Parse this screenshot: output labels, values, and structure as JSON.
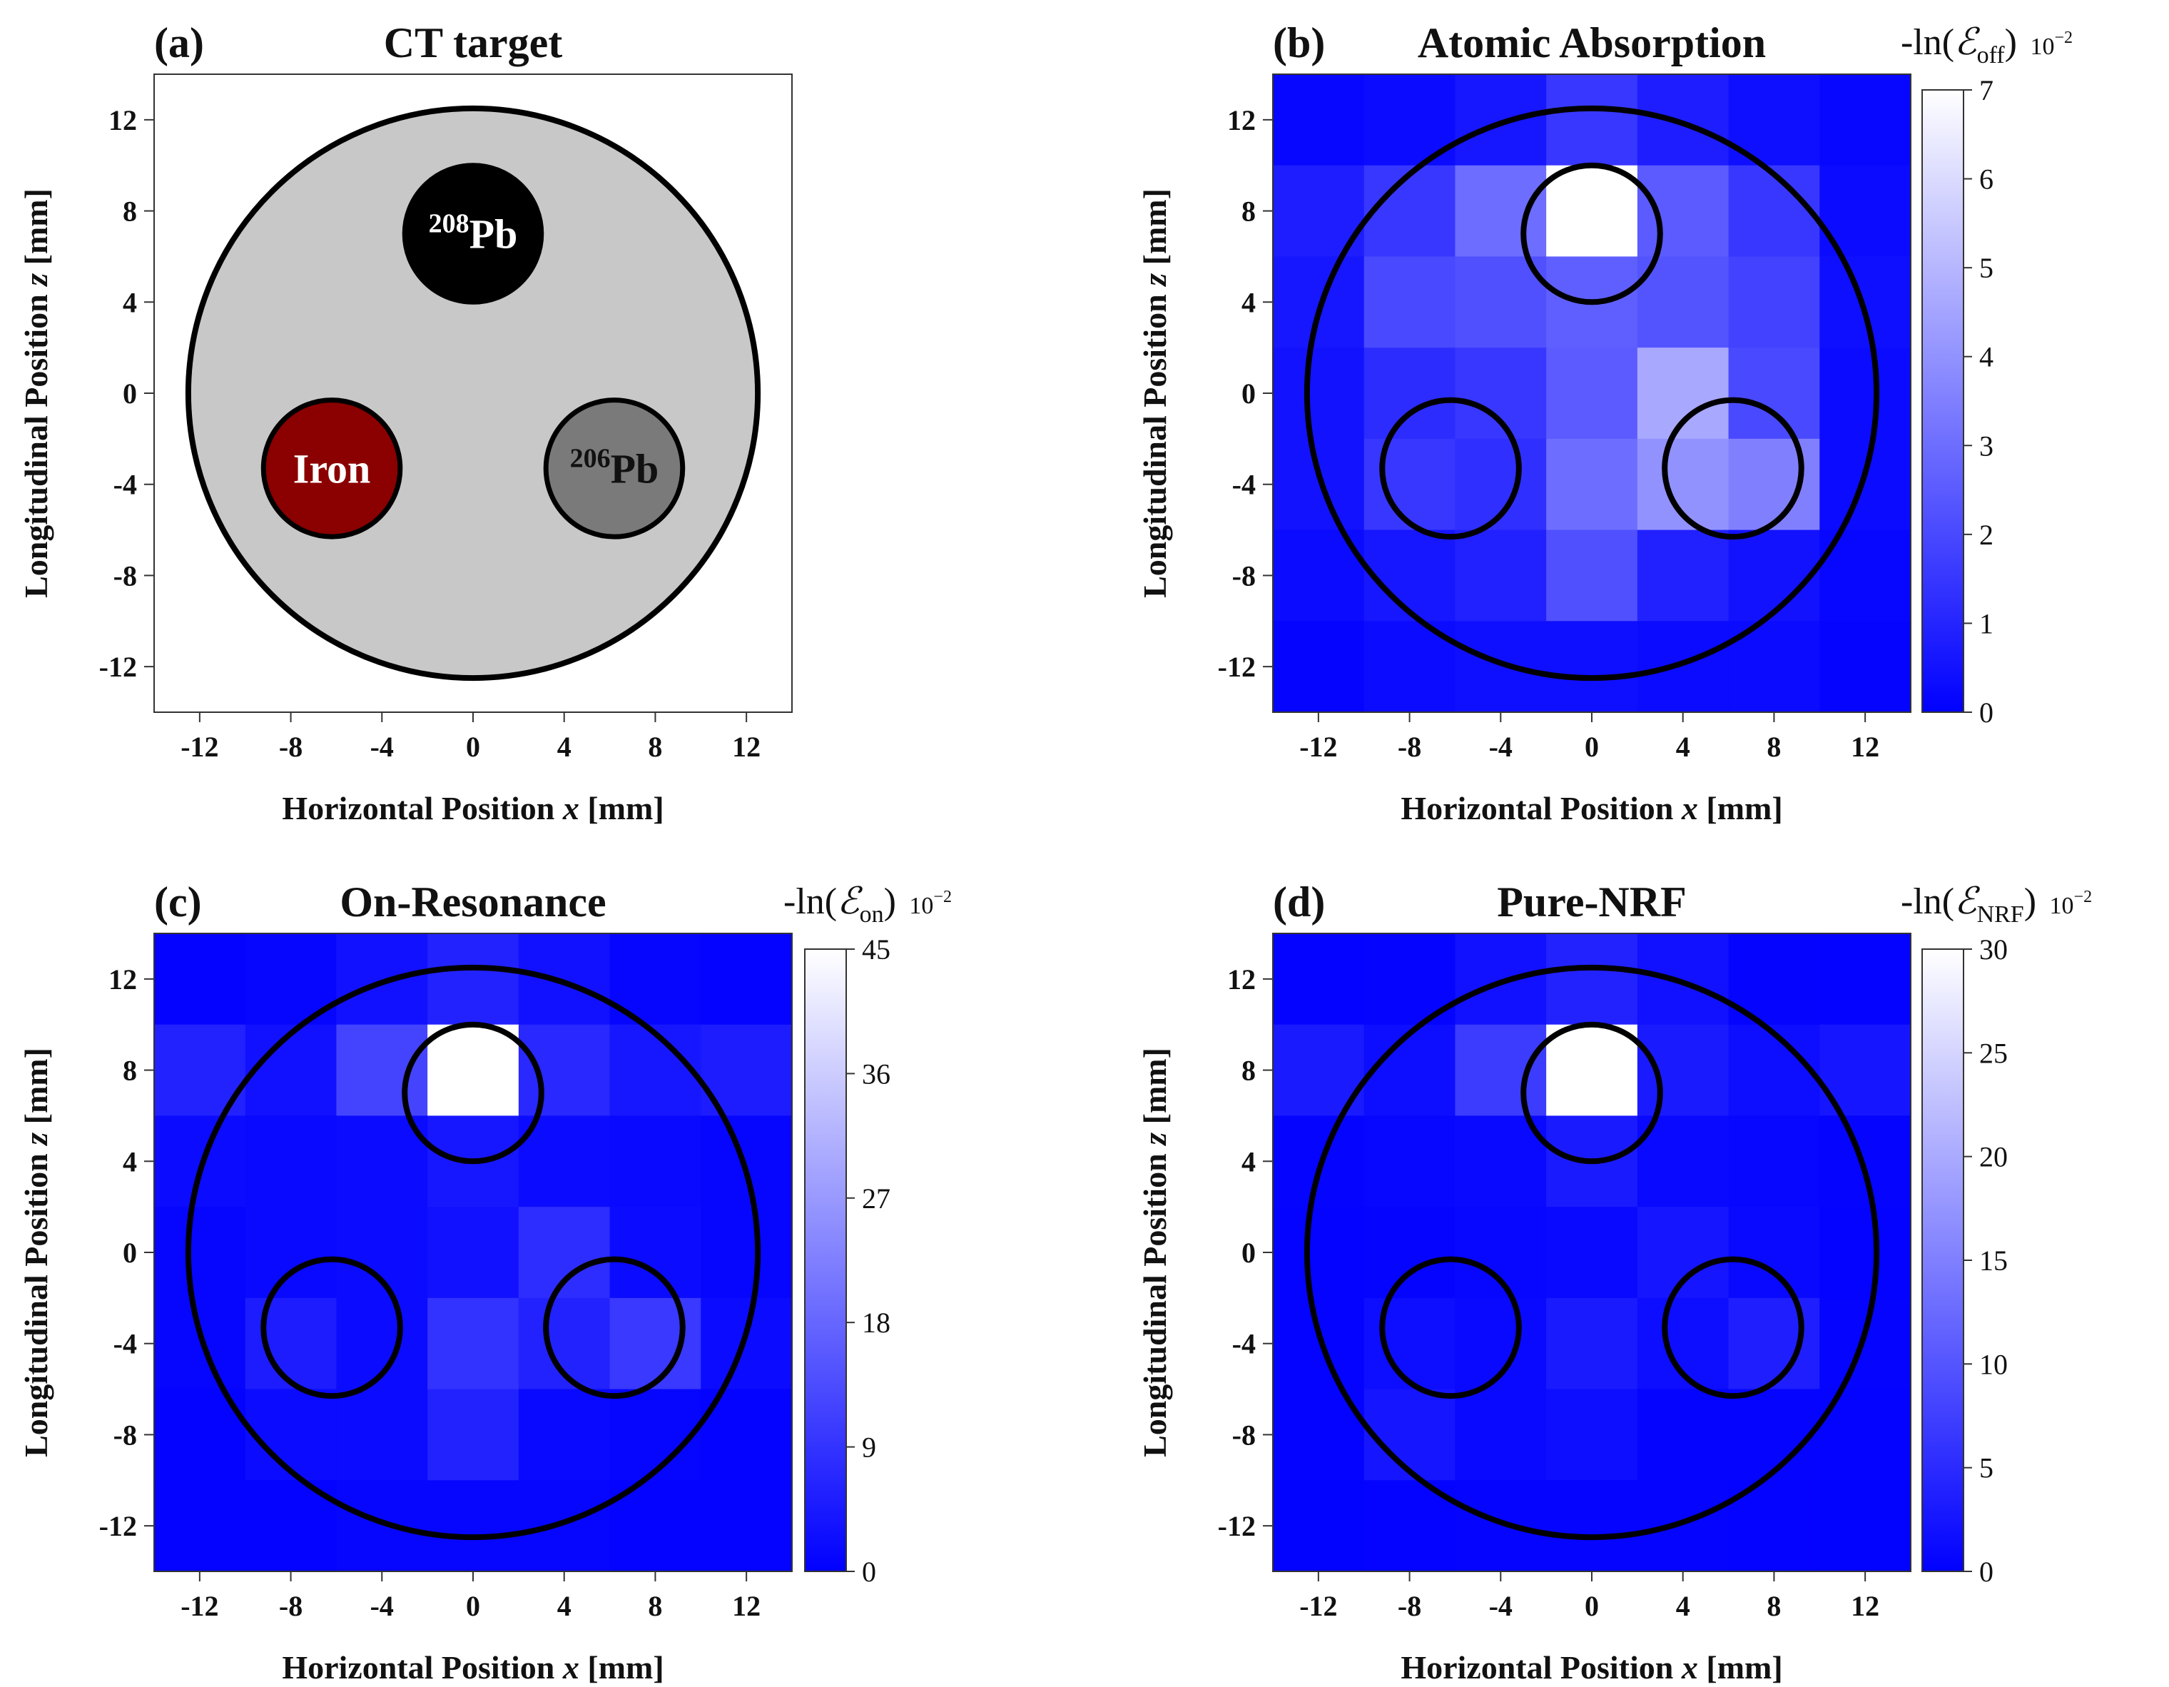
{
  "figure": {
    "colors": {
      "low": "#0000ff",
      "high": "#ffffff",
      "phantom": "#c8c8c8",
      "iron": "#8b0000",
      "pb208": "#000000",
      "pb206": "#7a7a7a",
      "outline": "#000000"
    }
  },
  "chart_data": [
    {
      "id": "a",
      "type": "diagram",
      "panel_label": "(a)",
      "title": "CT target",
      "xlabel_prefix": "Horizontal Position ",
      "xlabel_var": "x",
      "xlabel_suffix": " [mm]",
      "ylabel_prefix": "Longitudinal Position ",
      "ylabel_var": "z",
      "ylabel_suffix": " [mm]",
      "xlim": [
        -14,
        14
      ],
      "ylim": [
        -14,
        14
      ],
      "xticks": [
        -12,
        -8,
        -4,
        0,
        4,
        8,
        12
      ],
      "yticks": [
        -12,
        -8,
        -4,
        0,
        4,
        8,
        12
      ],
      "phantom": {
        "cx": 0,
        "cz": 0,
        "r": 12.5
      },
      "rods": [
        {
          "name": "pb208",
          "cx": 0,
          "cz": 7,
          "r": 3,
          "color": "pb208",
          "text_color": "#ffffff",
          "sup": "208",
          "label": "Pb"
        },
        {
          "name": "iron",
          "cx": -6.2,
          "cz": -3.3,
          "r": 3,
          "color": "iron",
          "text_color": "#ffffff",
          "sup": "",
          "label": "Iron"
        },
        {
          "name": "pb206",
          "cx": 6.2,
          "cz": -3.3,
          "r": 3,
          "color": "pb206",
          "text_color": "#111111",
          "sup": "206",
          "label": "Pb"
        }
      ]
    },
    {
      "id": "b",
      "type": "heatmap",
      "panel_label": "(b)",
      "title": "Atomic Absorption",
      "xlabel_prefix": "Horizontal Position ",
      "xlabel_var": "x",
      "xlabel_suffix": " [mm]",
      "ylabel_prefix": "Longitudinal Position ",
      "ylabel_var": "z",
      "ylabel_suffix": " [mm]",
      "xlim": [
        -14,
        14
      ],
      "ylim": [
        -14,
        14
      ],
      "xticks": [
        -12,
        -8,
        -4,
        0,
        4,
        8,
        12
      ],
      "yticks": [
        -12,
        -8,
        -4,
        0,
        4,
        8,
        12
      ],
      "cell_x_edges": [
        -14,
        -10,
        -6,
        -2,
        2,
        6,
        10,
        14
      ],
      "cell_z_edges": [
        14,
        10,
        6,
        2,
        -2,
        -6,
        -10,
        -14
      ],
      "values": [
        [
          0.2,
          0.3,
          0.6,
          1.5,
          0.8,
          0.4,
          0.2
        ],
        [
          0.8,
          1.5,
          3.0,
          7.0,
          2.5,
          1.5,
          0.3
        ],
        [
          0.6,
          2.0,
          2.2,
          2.6,
          2.3,
          1.8,
          0.4
        ],
        [
          0.5,
          1.2,
          1.5,
          2.5,
          4.6,
          2.0,
          0.3
        ],
        [
          0.5,
          1.5,
          1.3,
          3.0,
          4.0,
          3.5,
          0.3
        ],
        [
          0.3,
          0.6,
          0.9,
          2.2,
          0.9,
          0.5,
          0.2
        ],
        [
          0.1,
          0.3,
          0.4,
          0.4,
          0.3,
          0.3,
          0.1
        ]
      ],
      "vmin": 0,
      "vmax": 7,
      "colorbar_ticks": [
        0,
        1,
        2,
        3,
        4,
        5,
        6,
        7
      ],
      "colorbar_title_prefix": "-ln(",
      "colorbar_title_symbol": "ℰ",
      "colorbar_title_sub": "off",
      "colorbar_title_suffix": ")",
      "colorbar_unit": "10",
      "colorbar_unit_exp": "−2",
      "overlay_circles": [
        {
          "cx": 0,
          "cz": 0,
          "r": 12.5
        },
        {
          "cx": 0,
          "cz": 7,
          "r": 3
        },
        {
          "cx": -6.2,
          "cz": -3.3,
          "r": 3
        },
        {
          "cx": 6.2,
          "cz": -3.3,
          "r": 3
        }
      ]
    },
    {
      "id": "c",
      "type": "heatmap",
      "panel_label": "(c)",
      "title": "On-Resonance",
      "xlabel_prefix": "Horizontal Position ",
      "xlabel_var": "x",
      "xlabel_suffix": " [mm]",
      "ylabel_prefix": "Longitudinal Position ",
      "ylabel_var": "z",
      "ylabel_suffix": " [mm]",
      "xlim": [
        -14,
        14
      ],
      "ylim": [
        -14,
        14
      ],
      "xticks": [
        -12,
        -8,
        -4,
        0,
        4,
        8,
        12
      ],
      "yticks": [
        -12,
        -8,
        -4,
        0,
        4,
        8,
        12
      ],
      "cell_x_edges": [
        -14,
        -10,
        -6,
        -2,
        2,
        6,
        10,
        14
      ],
      "cell_z_edges": [
        14,
        10,
        6,
        2,
        -2,
        -6,
        -10,
        -14
      ],
      "values": [
        [
          0.5,
          1,
          3,
          6,
          3,
          1,
          0.5
        ],
        [
          6,
          3,
          12,
          45,
          7,
          4,
          5
        ],
        [
          2,
          1.5,
          2,
          4,
          2,
          1.5,
          1
        ],
        [
          1,
          1.5,
          2,
          3,
          8,
          2,
          1
        ],
        [
          1,
          5,
          2,
          9,
          6,
          10,
          2
        ],
        [
          0.5,
          2,
          2,
          6,
          1.5,
          1,
          0.5
        ],
        [
          0.5,
          0.5,
          1,
          1,
          1,
          0.5,
          0.5
        ]
      ],
      "vmin": 0,
      "vmax": 45,
      "colorbar_ticks": [
        0,
        9,
        18,
        27,
        36,
        45
      ],
      "colorbar_title_prefix": "-ln(",
      "colorbar_title_symbol": "ℰ",
      "colorbar_title_sub": "on",
      "colorbar_title_suffix": ")",
      "colorbar_unit": "10",
      "colorbar_unit_exp": "−2",
      "overlay_circles": [
        {
          "cx": 0,
          "cz": 0,
          "r": 12.5
        },
        {
          "cx": 0,
          "cz": 7,
          "r": 3
        },
        {
          "cx": -6.2,
          "cz": -3.3,
          "r": 3
        },
        {
          "cx": 6.2,
          "cz": -3.3,
          "r": 3
        }
      ]
    },
    {
      "id": "d",
      "type": "heatmap",
      "panel_label": "(d)",
      "title": "Pure-NRF",
      "xlabel_prefix": "Horizontal Position ",
      "xlabel_var": "x",
      "xlabel_suffix": " [mm]",
      "ylabel_prefix": "Longitudinal Position ",
      "ylabel_var": "z",
      "ylabel_suffix": " [mm]",
      "xlim": [
        -14,
        14
      ],
      "ylim": [
        -14,
        14
      ],
      "xticks": [
        -12,
        -8,
        -4,
        0,
        4,
        8,
        12
      ],
      "yticks": [
        -12,
        -8,
        -4,
        0,
        4,
        8,
        12
      ],
      "cell_x_edges": [
        -14,
        -10,
        -6,
        -2,
        2,
        6,
        10,
        14
      ],
      "cell_z_edges": [
        14,
        10,
        6,
        2,
        -2,
        -6,
        -10,
        -14
      ],
      "values": [
        [
          0.3,
          0.5,
          2,
          4,
          2,
          0.5,
          0.3
        ],
        [
          3,
          1.5,
          7,
          30,
          3,
          1.5,
          2.5
        ],
        [
          0.5,
          0.8,
          1,
          3,
          1,
          0.8,
          0.5
        ],
        [
          0.3,
          0.5,
          0.8,
          1,
          2.5,
          1,
          0.3
        ],
        [
          0.3,
          1.5,
          1,
          3,
          1.5,
          3.5,
          0.5
        ],
        [
          0.3,
          2.5,
          1,
          1.5,
          0.5,
          0.5,
          0.3
        ],
        [
          0.2,
          0.3,
          0.5,
          0.5,
          0.5,
          0.3,
          0.2
        ]
      ],
      "vmin": 0,
      "vmax": 30,
      "colorbar_ticks": [
        0,
        5,
        10,
        15,
        20,
        25,
        30
      ],
      "colorbar_title_prefix": "-ln(",
      "colorbar_title_symbol": "ℰ",
      "colorbar_title_sub": "NRF",
      "colorbar_title_suffix": ")",
      "colorbar_unit": "10",
      "colorbar_unit_exp": "−2",
      "overlay_circles": [
        {
          "cx": 0,
          "cz": 0,
          "r": 12.5
        },
        {
          "cx": 0,
          "cz": 7,
          "r": 3
        },
        {
          "cx": -6.2,
          "cz": -3.3,
          "r": 3
        },
        {
          "cx": 6.2,
          "cz": -3.3,
          "r": 3
        }
      ]
    }
  ]
}
